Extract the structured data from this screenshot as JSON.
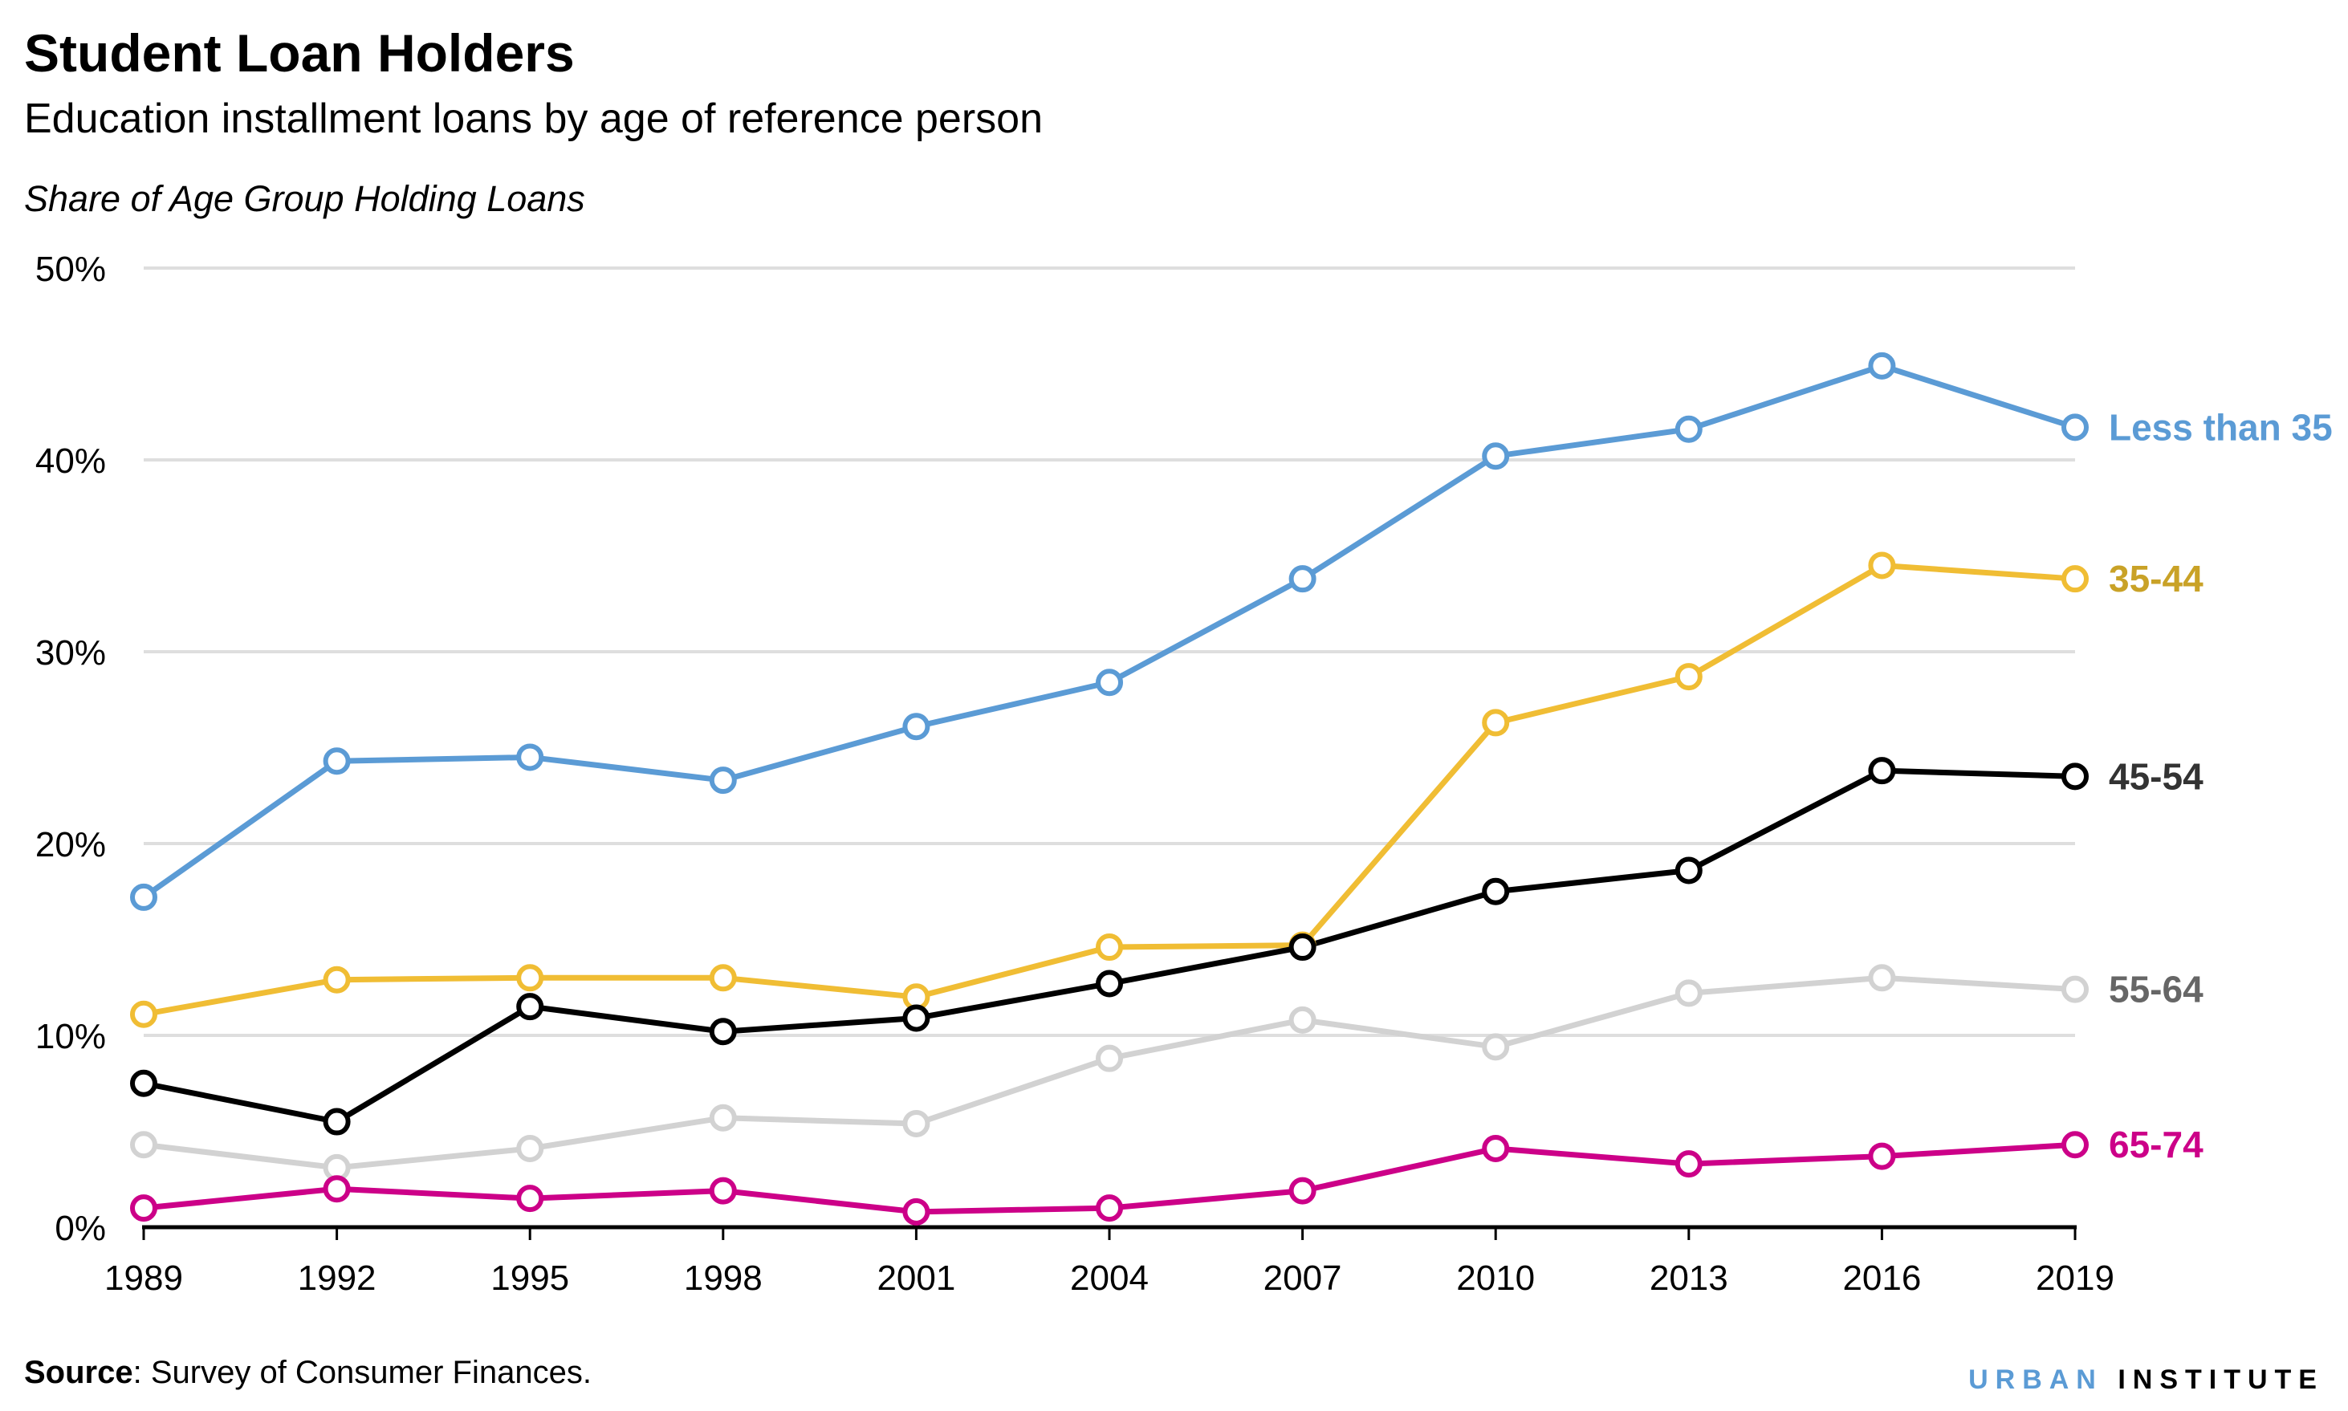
{
  "title": "Student Loan Holders",
  "subtitle": "Education installment loans by age of reference person",
  "source_label": "Source",
  "source_text": ": Survey of Consumer Finances.",
  "logo": {
    "part1": "URBAN",
    "part2": "INSTITUTE",
    "color1": "#5b9bd5",
    "color2": "#000000"
  },
  "chart_data": {
    "type": "line",
    "title": "Student Loan Holders",
    "ylabel": "Share of Age Group Holding Loans",
    "xlabel": "",
    "x": [
      1989,
      1992,
      1995,
      1998,
      2001,
      2004,
      2007,
      2010,
      2013,
      2016,
      2019
    ],
    "ylim": [
      0,
      50
    ],
    "yticks": [
      0,
      10,
      20,
      30,
      40,
      50
    ],
    "ytick_labels": [
      "0%",
      "10%",
      "20%",
      "30%",
      "40%",
      "50%"
    ],
    "grid": "horizontal",
    "legend": "direct labels at right end of lines",
    "series": [
      {
        "name": "Less than 35",
        "color": "#5b9bd5",
        "label_color": "#5b9bd5",
        "values": [
          17.2,
          24.3,
          24.5,
          23.3,
          26.1,
          28.4,
          33.8,
          40.2,
          41.6,
          44.9,
          41.7
        ]
      },
      {
        "name": "35-44",
        "color": "#f0bd34",
        "label_color": "#c9a227",
        "values": [
          11.1,
          12.9,
          13.0,
          13.0,
          12.0,
          14.6,
          14.7,
          26.3,
          28.7,
          34.5,
          33.8
        ]
      },
      {
        "name": "45-54",
        "color": "#000000",
        "label_color": "#333333",
        "values": [
          7.5,
          5.5,
          11.5,
          10.2,
          10.9,
          12.7,
          14.6,
          17.5,
          18.6,
          23.8,
          23.5
        ]
      },
      {
        "name": "55-64",
        "color": "#d2d2d2",
        "label_color": "#666666",
        "values": [
          4.3,
          3.1,
          4.1,
          5.7,
          5.4,
          8.8,
          10.8,
          9.4,
          12.2,
          13.0,
          12.4
        ]
      },
      {
        "name": "65-74",
        "color": "#cc0088",
        "label_color": "#cc0088",
        "values": [
          1.0,
          2.0,
          1.5,
          1.9,
          0.8,
          1.0,
          1.9,
          4.1,
          3.3,
          3.7,
          4.3
        ]
      }
    ]
  }
}
